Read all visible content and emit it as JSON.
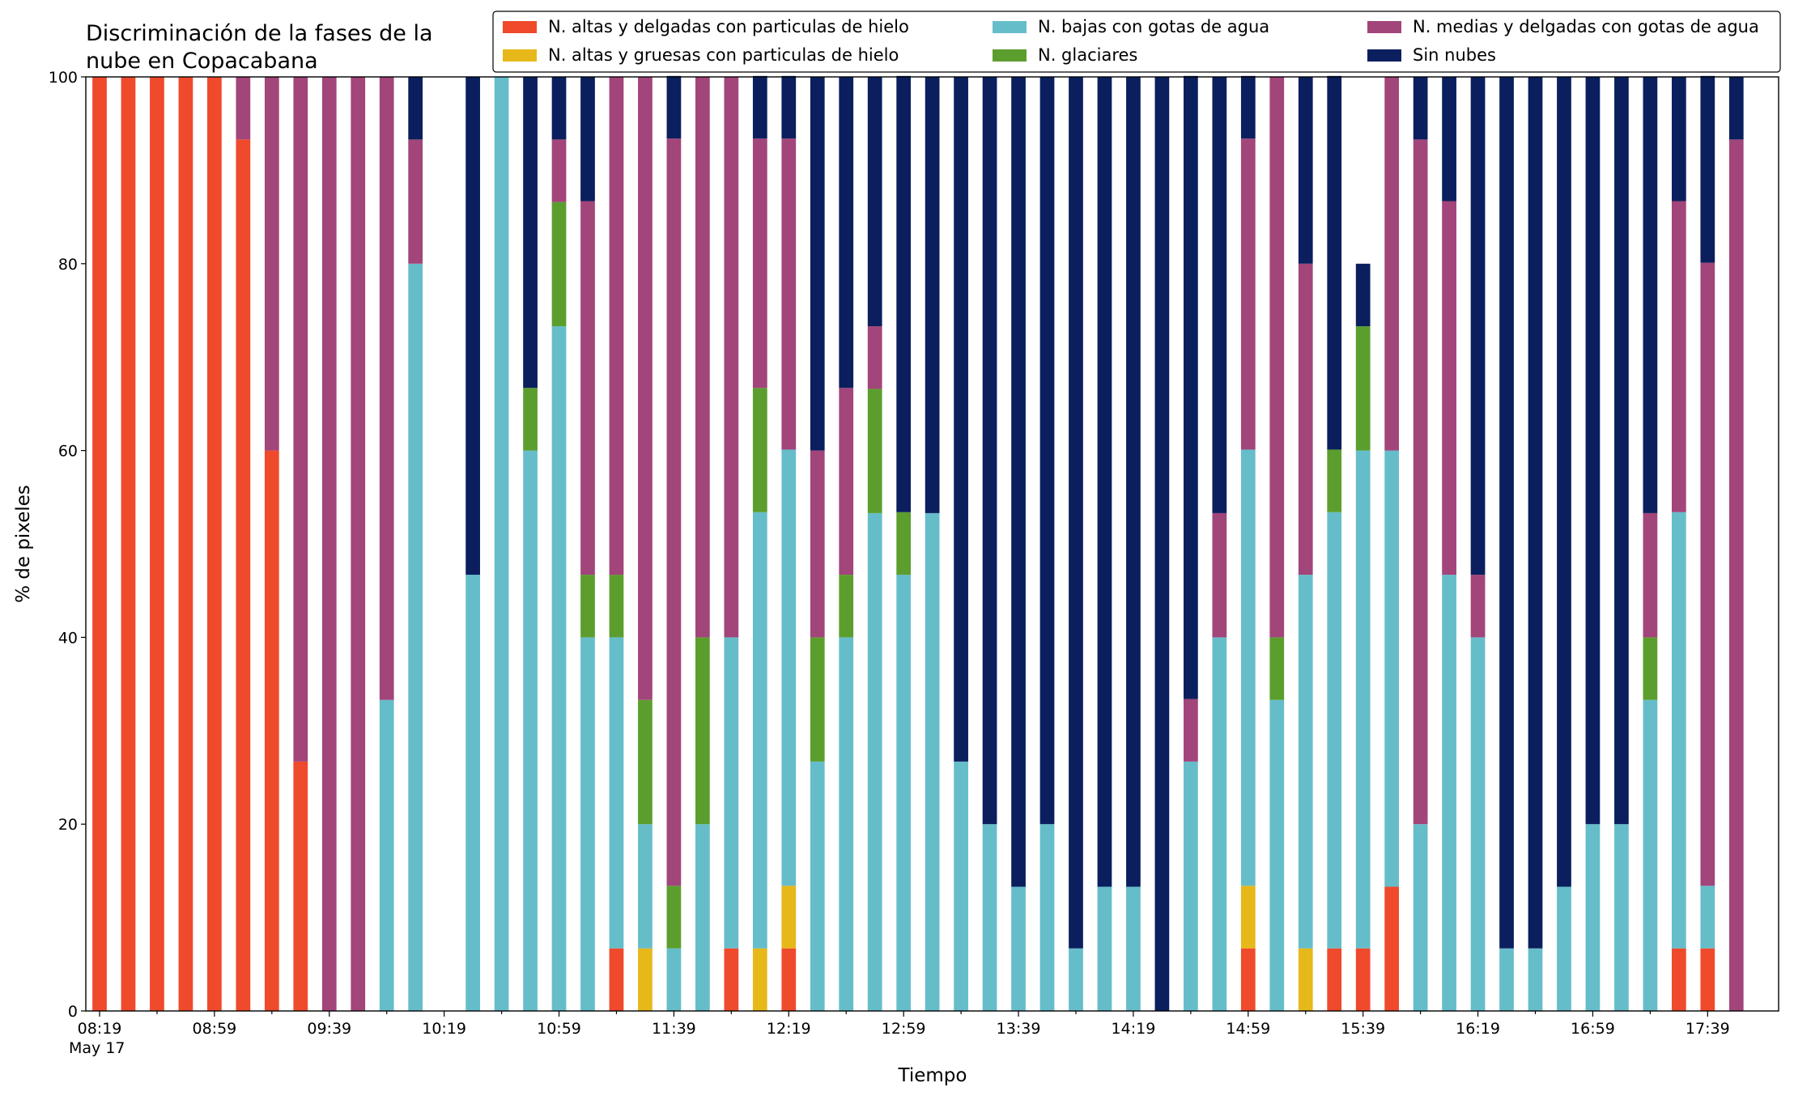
{
  "chart_data": {
    "type": "stacked_bar",
    "title": [
      "Discriminación de la fases de la",
      "nube en Copacabana"
    ],
    "xlabel": "Tiempo",
    "ylabel": "% de pixeles",
    "x_sublabel": "May 17",
    "categories": [
      "08:19",
      null,
      null,
      null,
      "08:59",
      null,
      null,
      null,
      "09:39",
      null,
      null,
      null,
      "10:19",
      null,
      null,
      null,
      "10:59",
      null,
      null,
      null,
      "11:39",
      null,
      null,
      null,
      "12:19",
      null,
      null,
      null,
      "12:59",
      null,
      null,
      null,
      "13:39",
      null,
      null,
      null,
      "14:19",
      null,
      null,
      null,
      "14:59",
      null,
      null,
      null,
      "15:39",
      null,
      null,
      null,
      "16:19",
      null,
      null,
      null,
      "16:59",
      null,
      null,
      null,
      "17:39",
      null
    ],
    "ylim": [
      0,
      100
    ],
    "yticks": [
      0,
      20,
      40,
      60,
      80,
      100
    ],
    "legend": "top",
    "series": [
      {
        "name": "N. altas y delgadas con particulas de hielo",
        "color": "#ef4a2c",
        "values": [
          100,
          100,
          100,
          100,
          100,
          93.3,
          60,
          26.7,
          0,
          0,
          0,
          0,
          0,
          0,
          0,
          0,
          0,
          0,
          6.7,
          0,
          0,
          0,
          6.7,
          0,
          6.7,
          0,
          0,
          0,
          0,
          0,
          0,
          0,
          0,
          0,
          0,
          0,
          0,
          0,
          0,
          0,
          6.7,
          0,
          0,
          6.7,
          6.7,
          13.3,
          0,
          0,
          0,
          0,
          0,
          0,
          0,
          0,
          0,
          6.7,
          6.7,
          0
        ]
      },
      {
        "name": "N. altas y gruesas con particulas de hielo",
        "color": "#e6b81a",
        "values": [
          0,
          0,
          0,
          0,
          0,
          0,
          0,
          0,
          0,
          0,
          0,
          0,
          0,
          0,
          0,
          0,
          0,
          0,
          0,
          6.7,
          0,
          0,
          0,
          6.7,
          6.7,
          0,
          0,
          0,
          0,
          0,
          0,
          0,
          0,
          0,
          0,
          0,
          0,
          0,
          0,
          0,
          6.7,
          0,
          6.7,
          0,
          0,
          0,
          0,
          0,
          0,
          0,
          0,
          0,
          0,
          0,
          0,
          0,
          0,
          0
        ]
      },
      {
        "name": "N. bajas con gotas de agua",
        "color": "#66bdca",
        "values": [
          0,
          0,
          0,
          0,
          0,
          0,
          0,
          0,
          0,
          0,
          33.3,
          80,
          0,
          46.7,
          100,
          60,
          73.3,
          40,
          33.3,
          13.3,
          6.7,
          20,
          33.3,
          46.7,
          46.7,
          26.7,
          40,
          53.3,
          46.7,
          53.3,
          26.7,
          20,
          13.3,
          20,
          6.7,
          13.3,
          13.3,
          0,
          26.7,
          40,
          46.7,
          33.3,
          40,
          46.7,
          53.3,
          46.7,
          20,
          46.7,
          40,
          6.7,
          6.7,
          13.3,
          20,
          20,
          33.3,
          46.7,
          6.7,
          0
        ]
      },
      {
        "name": "N. glaciares",
        "color": "#5c9e2e",
        "values": [
          0,
          0,
          0,
          0,
          0,
          0,
          0,
          0,
          0,
          0,
          0,
          0,
          0,
          0,
          0,
          6.7,
          13.3,
          6.7,
          6.7,
          13.3,
          6.7,
          20,
          0,
          13.3,
          0,
          13.3,
          6.7,
          13.3,
          6.7,
          0,
          0,
          0,
          0,
          0,
          0,
          0,
          0,
          0,
          0,
          0,
          0,
          6.7,
          0,
          6.7,
          13.3,
          0,
          0,
          0,
          0,
          0,
          0,
          0,
          0,
          0,
          6.7,
          0,
          0,
          0
        ]
      },
      {
        "name": "N. medias y delgadas con gotas de agua",
        "color": "#a2457a",
        "values": [
          0,
          0,
          0,
          0,
          0,
          6.7,
          40,
          73.3,
          100,
          100,
          66.7,
          13.3,
          0,
          0,
          0,
          0,
          6.7,
          40,
          53.3,
          66.7,
          80,
          60,
          60,
          26.7,
          33.3,
          20,
          20,
          6.7,
          0,
          0,
          0,
          0,
          0,
          0,
          0,
          0,
          0,
          0,
          6.7,
          13.3,
          33.3,
          60,
          33.3,
          0,
          0,
          40,
          73.3,
          40,
          6.7,
          0,
          0,
          0,
          0,
          0,
          13.3,
          33.3,
          66.7,
          93.3
        ]
      },
      {
        "name": "Sin nubes",
        "color": "#0b1f5e",
        "values": [
          0,
          0,
          0,
          0,
          0,
          0,
          0,
          0,
          0,
          0,
          0,
          6.7,
          0,
          53.3,
          0,
          33.3,
          6.7,
          13.3,
          0,
          0,
          6.7,
          0,
          0,
          6.7,
          6.7,
          40,
          33.3,
          26.7,
          46.7,
          46.7,
          73.3,
          80,
          86.7,
          80,
          93.3,
          86.7,
          86.7,
          100,
          66.7,
          46.7,
          6.7,
          0,
          20,
          40,
          6.7,
          0,
          6.7,
          13.3,
          53.3,
          93.3,
          93.3,
          86.7,
          80,
          80,
          46.7,
          13.3,
          20,
          6.7
        ]
      }
    ]
  }
}
